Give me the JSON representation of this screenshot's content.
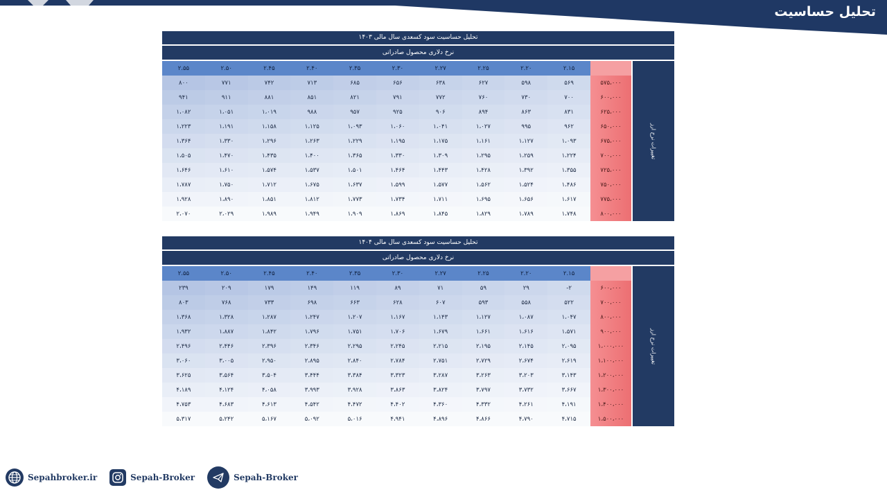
{
  "header": {
    "title": "تحلیل حساسیت"
  },
  "tables": [
    {
      "title": "تحلیل حساسیت سود کسعدی سال مالی ۱۴۰۳",
      "subtitle": "نرخ دلاری محصول صادراتی",
      "side_label": "تغییرات نرخ ارز",
      "columns": [
        "۲.۱۵",
        "۲.۲۰",
        "۲.۲۵",
        "۲.۲۷",
        "۲.۳۰",
        "۲.۳۵",
        "۲.۴۰",
        "۲.۴۵",
        "۲.۵۰",
        "۲.۵۵"
      ],
      "rows": [
        {
          "label": "۵۷۵،۰۰۰",
          "values": [
            "۵۶۹",
            "۵۹۸",
            "۶۲۷",
            "۶۳۸",
            "۶۵۶",
            "۶۸۵",
            "۷۱۳",
            "۷۴۲",
            "۷۷۱",
            "۸۰۰"
          ]
        },
        {
          "label": "۶۰۰،۰۰۰",
          "values": [
            "۷۰۰",
            "۷۳۰",
            "۷۶۰",
            "۷۷۲",
            "۷۹۱",
            "۸۲۱",
            "۸۵۱",
            "۸۸۱",
            "۹۱۱",
            "۹۴۱"
          ]
        },
        {
          "label": "۶۲۵،۰۰۰",
          "values": [
            "۸۳۱",
            "۸۶۳",
            "۸۹۴",
            "۹۰۶",
            "۹۲۵",
            "۹۵۷",
            "۹۸۸",
            "۱،۰۱۹",
            "۱،۰۵۱",
            "۱،۰۸۲"
          ]
        },
        {
          "label": "۶۵۰،۰۰۰",
          "values": [
            "۹۶۲",
            "۹۹۵",
            "۱،۰۲۷",
            "۱،۰۴۱",
            "۱،۰۶۰",
            "۱،۰۹۳",
            "۱،۱۲۵",
            "۱،۱۵۸",
            "۱،۱۹۱",
            "۱،۲۲۳"
          ]
        },
        {
          "label": "۶۷۵،۰۰۰",
          "values": [
            "۱،۰۹۳",
            "۱،۱۲۷",
            "۱،۱۶۱",
            "۱،۱۷۵",
            "۱،۱۹۵",
            "۱،۲۲۹",
            "۱،۲۶۳",
            "۱،۲۹۶",
            "۱،۳۳۰",
            "۱،۳۶۴"
          ]
        },
        {
          "label": "۷۰۰،۰۰۰",
          "values": [
            "۱،۲۲۴",
            "۱،۲۵۹",
            "۱،۲۹۵",
            "۱،۳۰۹",
            "۱،۳۳۰",
            "۱،۳۶۵",
            "۱،۴۰۰",
            "۱،۴۳۵",
            "۱،۴۷۰",
            "۱،۵۰۵"
          ]
        },
        {
          "label": "۷۲۵،۰۰۰",
          "values": [
            "۱،۳۵۵",
            "۱،۳۹۲",
            "۱،۴۲۸",
            "۱،۴۴۳",
            "۱،۴۶۴",
            "۱،۵۰۱",
            "۱،۵۳۷",
            "۱،۵۷۴",
            "۱،۶۱۰",
            "۱،۶۴۶"
          ]
        },
        {
          "label": "۷۵۰،۰۰۰",
          "values": [
            "۱،۴۸۶",
            "۱،۵۲۴",
            "۱،۵۶۲",
            "۱،۵۷۷",
            "۱،۵۹۹",
            "۱،۶۳۷",
            "۱،۶۷۵",
            "۱،۷۱۲",
            "۱،۷۵۰",
            "۱،۷۸۷"
          ]
        },
        {
          "label": "۷۷۵،۰۰۰",
          "values": [
            "۱،۶۱۷",
            "۱،۶۵۶",
            "۱،۶۹۵",
            "۱،۷۱۱",
            "۱،۷۳۴",
            "۱،۷۷۳",
            "۱،۸۱۲",
            "۱،۸۵۱",
            "۱،۸۹۰",
            "۱،۹۲۸"
          ]
        },
        {
          "label": "۸۰۰،۰۰۰",
          "values": [
            "۱،۷۴۸",
            "۱،۷۸۹",
            "۱،۸۲۹",
            "۱،۸۴۵",
            "۱،۸۶۹",
            "۱،۹۰۹",
            "۱،۹۴۹",
            "۱،۹۸۹",
            "۲،۰۲۹",
            "۲،۰۷۰"
          ]
        }
      ]
    },
    {
      "title": "تحلیل حساسیت سود کسعدی سال مالی ۱۴۰۴",
      "subtitle": "نرخ دلاری محصول صادراتی",
      "side_label": "تغییرات نرخ ارز",
      "columns": [
        "۲.۱۵",
        "۲.۲۰",
        "۲.۲۵",
        "۲.۲۷",
        "۲.۳۰",
        "۲.۳۵",
        "۲.۴۰",
        "۲.۴۵",
        "۲.۵۰",
        "۲.۵۵"
      ],
      "rows": [
        {
          "label": "۶۰۰،۰۰۰",
          "values": [
            "-۲",
            "۲۹",
            "۵۹",
            "۷۱",
            "۸۹",
            "۱۱۹",
            "۱۴۹",
            "۱۷۹",
            "۲۰۹",
            "۲۳۹"
          ]
        },
        {
          "label": "۷۰۰،۰۰۰",
          "values": [
            "۵۲۲",
            "۵۵۸",
            "۵۹۳",
            "۶۰۷",
            "۶۲۸",
            "۶۶۳",
            "۶۹۸",
            "۷۳۳",
            "۷۶۸",
            "۸۰۳"
          ]
        },
        {
          "label": "۸۰۰،۰۰۰",
          "values": [
            "۱،۰۴۷",
            "۱،۰۸۷",
            "۱،۱۲۷",
            "۱،۱۴۳",
            "۱،۱۶۷",
            "۱،۲۰۷",
            "۱،۲۴۷",
            "۱،۲۸۷",
            "۱،۳۲۸",
            "۱،۳۶۸"
          ]
        },
        {
          "label": "۹۰۰،۰۰۰",
          "values": [
            "۱،۵۷۱",
            "۱،۶۱۶",
            "۱،۶۶۱",
            "۱،۶۷۹",
            "۱،۷۰۶",
            "۱،۷۵۱",
            "۱،۷۹۶",
            "۱،۸۴۲",
            "۱،۸۸۷",
            "۱،۹۳۲"
          ]
        },
        {
          "label": "۱،۰۰۰،۰۰۰",
          "values": [
            "۲،۰۹۵",
            "۲،۱۴۵",
            "۲،۱۹۵",
            "۲،۲۱۵",
            "۲،۲۴۵",
            "۲،۲۹۵",
            "۲،۳۴۶",
            "۲،۳۹۶",
            "۲،۴۴۶",
            "۲،۴۹۶"
          ]
        },
        {
          "label": "۱،۱۰۰،۰۰۰",
          "values": [
            "۲،۶۱۹",
            "۲،۶۷۴",
            "۲،۷۲۹",
            "۲،۷۵۱",
            "۲،۷۸۴",
            "۲،۸۴۰",
            "۲،۸۹۵",
            "۲،۹۵۰",
            "۳،۰۰۵",
            "۳،۰۶۰"
          ]
        },
        {
          "label": "۱،۲۰۰،۰۰۰",
          "values": [
            "۳،۱۴۳",
            "۳،۲۰۳",
            "۳،۲۶۳",
            "۳،۲۸۷",
            "۳،۳۲۳",
            "۳،۳۸۴",
            "۳،۴۴۴",
            "۳،۵۰۴",
            "۳،۵۶۴",
            "۳،۶۲۵"
          ]
        },
        {
          "label": "۱،۳۰۰،۰۰۰",
          "values": [
            "۳،۶۶۷",
            "۳،۷۳۲",
            "۳،۷۹۷",
            "۳،۸۲۴",
            "۳،۸۶۳",
            "۳،۹۲۸",
            "۳،۹۹۳",
            "۴،۰۵۸",
            "۴،۱۲۴",
            "۴،۱۸۹"
          ]
        },
        {
          "label": "۱،۴۰۰،۰۰۰",
          "values": [
            "۴،۱۹۱",
            "۴،۲۶۱",
            "۴،۳۳۲",
            "۴،۳۶۰",
            "۴،۴۰۲",
            "۴،۴۷۲",
            "۴،۵۴۲",
            "۴،۶۱۳",
            "۴،۶۸۳",
            "۴،۷۵۳"
          ]
        },
        {
          "label": "۱،۵۰۰،۰۰۰",
          "values": [
            "۴،۷۱۵",
            "۴،۷۹۰",
            "۴،۸۶۶",
            "۴،۸۹۶",
            "۴،۹۴۱",
            "۵،۰۱۶",
            "۵،۰۹۲",
            "۵،۱۶۷",
            "۵،۲۴۲",
            "۵،۳۱۷"
          ]
        }
      ]
    }
  ],
  "footer": {
    "website": "Sepahbroker.ir",
    "instagram": "Sepah-Broker",
    "telegram": "Sepah-Broker"
  }
}
